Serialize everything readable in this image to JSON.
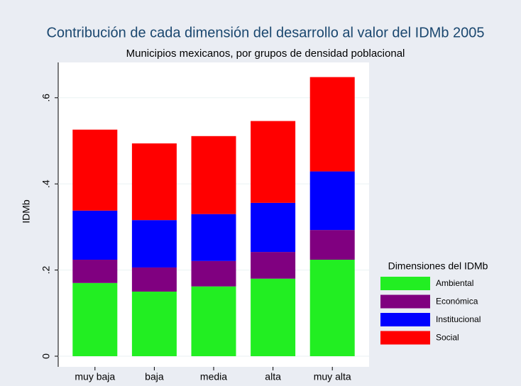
{
  "chart_data": {
    "type": "stacked_bar",
    "title": "Contribución de cada dimensión del desarrollo al valor del IDMb 2005",
    "subtitle": "Municipios mexicanos, por grupos de densidad poblacional",
    "y_label": "IDMb",
    "categories": [
      "muy baja",
      "baja",
      "media",
      "alta",
      "muy alta"
    ],
    "series": [
      {
        "name": "Ambiental",
        "color": "#22ee22",
        "values": [
          0.17,
          0.15,
          0.162,
          0.18,
          0.224
        ]
      },
      {
        "name": "Económica",
        "color": "#800080",
        "values": [
          0.054,
          0.056,
          0.059,
          0.062,
          0.069
        ]
      },
      {
        "name": "Institucional",
        "color": "#0000ff",
        "values": [
          0.114,
          0.11,
          0.109,
          0.114,
          0.136
        ]
      },
      {
        "name": "Social",
        "color": "#ff0000",
        "values": [
          0.188,
          0.178,
          0.181,
          0.19,
          0.219
        ]
      }
    ],
    "legend_title": "Dimensiones del IDMb",
    "legend": "right",
    "ylim": [
      0,
      0.682
    ],
    "yticks": [
      0,
      {
        "value": 0.2,
        "label": ".2"
      },
      {
        "value": 0.4,
        "label": ".4"
      },
      {
        "value": 0.6,
        "label": ".6"
      }
    ],
    "grid": true
  }
}
